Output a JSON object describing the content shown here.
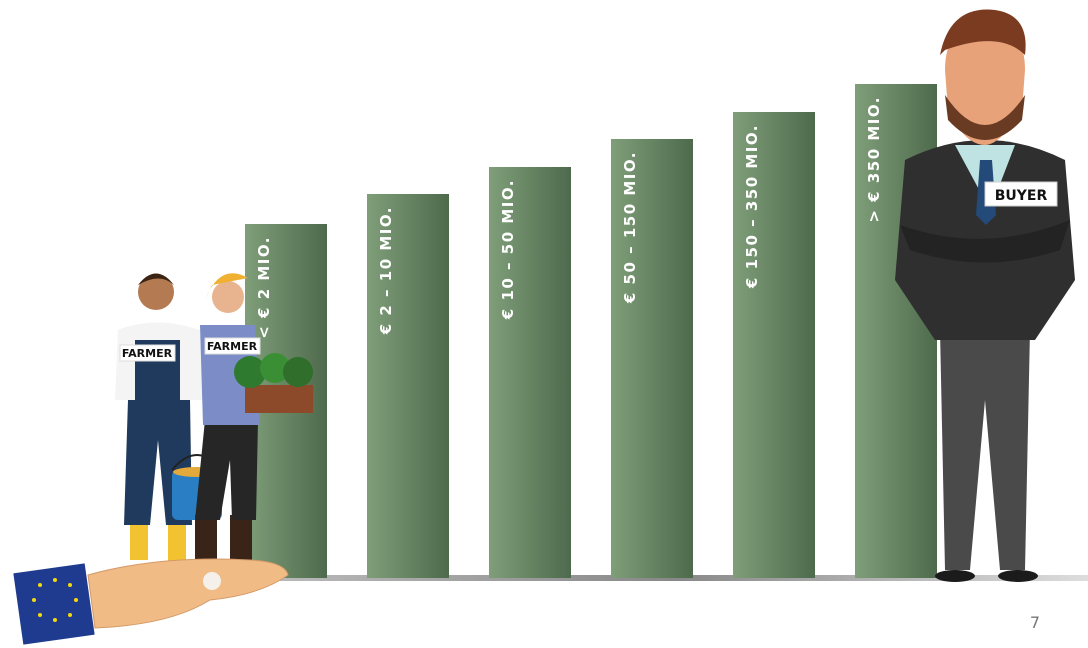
{
  "bars": [
    {
      "label": "< € 2 MIO."
    },
    {
      "label": "€ 2 – 10 MIO."
    },
    {
      "label": "€ 10 – 50 MIO."
    },
    {
      "label": "€ 50 – 150  MIO."
    },
    {
      "label": "€ 150 – 350  MIO."
    },
    {
      "label": "> € 350 MIO."
    }
  ],
  "people": {
    "farmer_1": "FARMER",
    "farmer_2": "FARMER",
    "buyer": "BUYER"
  },
  "page_number": "7"
}
